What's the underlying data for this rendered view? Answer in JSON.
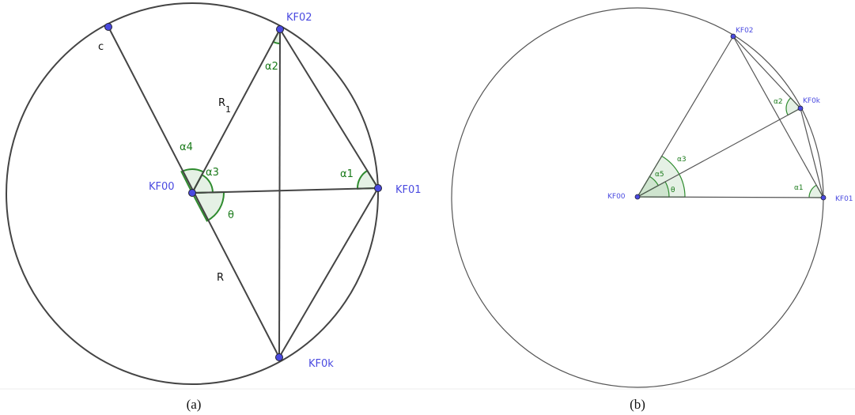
{
  "panel_a": {
    "points": {
      "kf00": "KF00",
      "kf01": "KF01",
      "kf02": "KF02",
      "kf0k": "KF0k"
    },
    "angles": {
      "a1": "α1",
      "a2": "α2",
      "a3": "α3",
      "a4": "α4",
      "theta": "θ"
    },
    "segments": {
      "r1": "R",
      "r1_sub": "1",
      "r": "R",
      "c": "c"
    },
    "caption": "(a)"
  },
  "panel_b": {
    "points": {
      "kf00": "KF00",
      "kf01": "KF01",
      "kf02": "KF02",
      "kf0k": "KF0k"
    },
    "angles": {
      "a1": "α1",
      "a2": "α2",
      "a3": "α3",
      "a5": "α5",
      "theta": "θ"
    },
    "caption": "(b)"
  }
}
